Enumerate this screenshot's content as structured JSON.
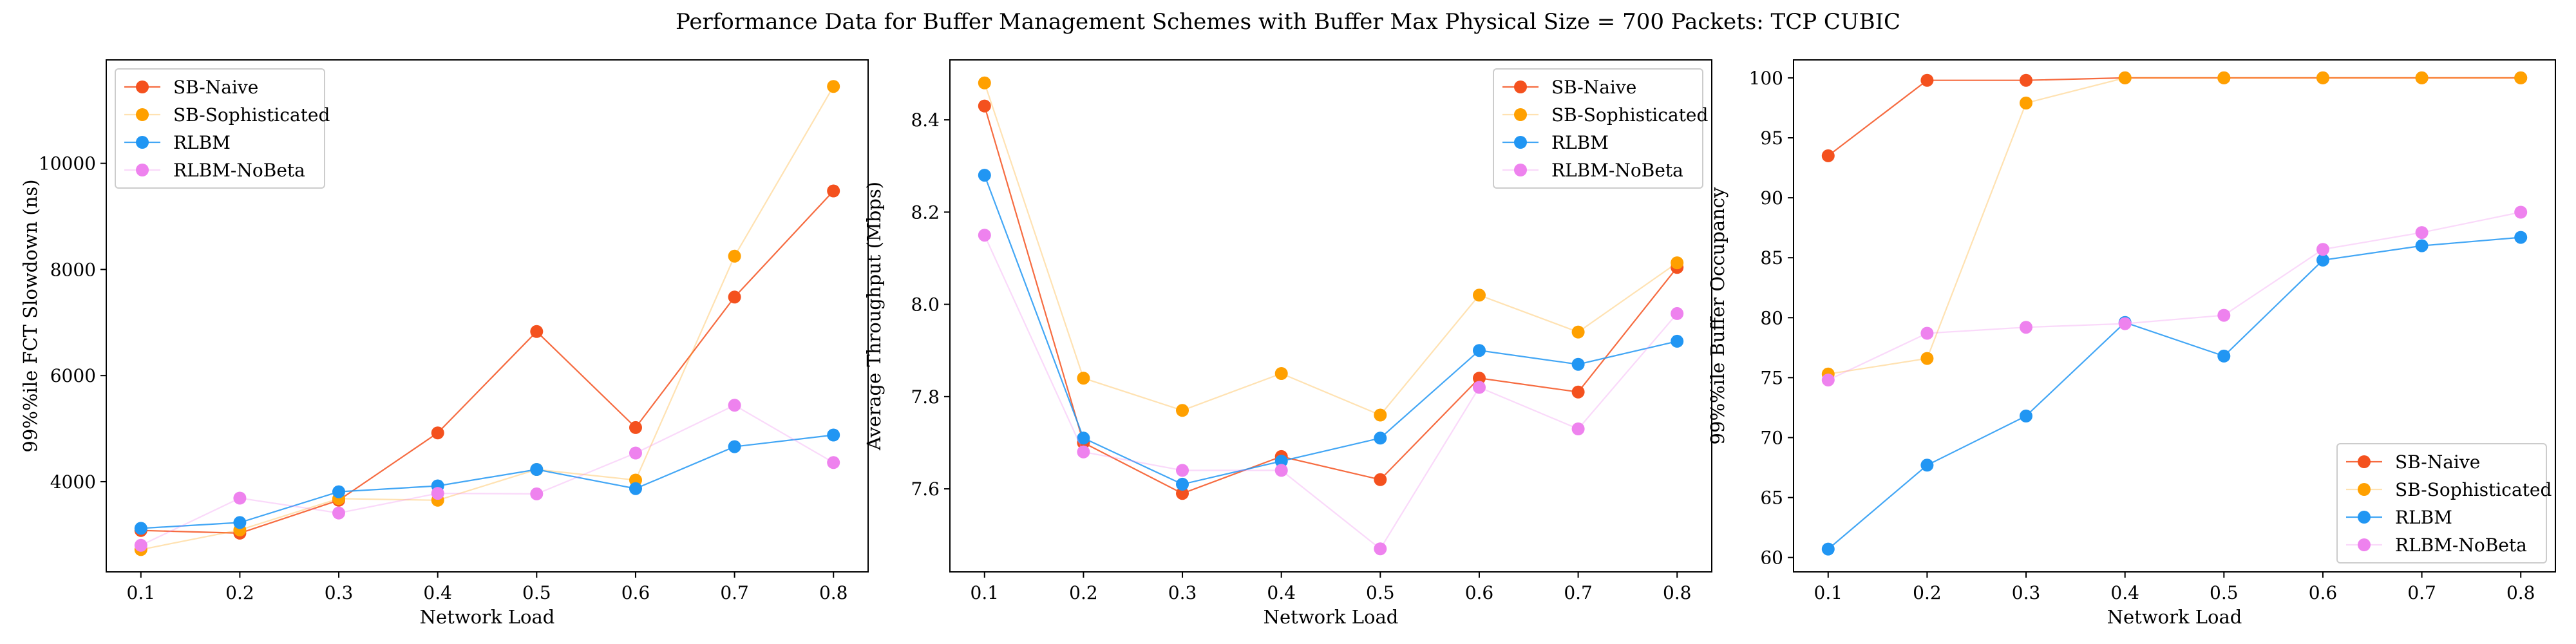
{
  "figure": {
    "title": "Performance Data for Buffer Management Schemes with Buffer Max Physical Size = 700 Packets: TCP CUBIC",
    "series_styles": [
      {
        "name": "SB-Naive",
        "color": "#f4511e",
        "line_opacity": 0.85
      },
      {
        "name": "SB-Sophisticated",
        "color": "#ffa000",
        "line_opacity": 0.3
      },
      {
        "name": "RLBM",
        "color": "#2196f3",
        "line_opacity": 0.85
      },
      {
        "name": "RLBM-NoBeta",
        "color": "#ee82ee",
        "line_opacity": 0.3
      }
    ]
  },
  "chart_data": [
    {
      "type": "line",
      "xlabel": "Network Load",
      "ylabel": "99%%ile FCT Slowdown (ns)",
      "x": [
        0.1,
        0.2,
        0.3,
        0.4,
        0.5,
        0.6,
        0.7,
        0.8
      ],
      "xticks": [
        "0.1",
        "0.2",
        "0.3",
        "0.4",
        "0.5",
        "0.6",
        "0.7",
        "0.8"
      ],
      "xlim": [
        0.065,
        0.835
      ],
      "ylim": [
        2300,
        11950
      ],
      "yticks": [
        4000,
        6000,
        8000,
        10000
      ],
      "ytick_labels": [
        "4000",
        "6000",
        "8000",
        "10000"
      ],
      "legend": "top-left",
      "series": [
        {
          "name": "SB-Naive",
          "values": [
            3080,
            3030,
            3650,
            4920,
            6830,
            5020,
            7480,
            9480
          ]
        },
        {
          "name": "SB-Sophisticated",
          "values": [
            2720,
            3090,
            3680,
            3650,
            4230,
            4030,
            8250,
            11450
          ]
        },
        {
          "name": "RLBM",
          "values": [
            3120,
            3230,
            3810,
            3920,
            4230,
            3870,
            4660,
            4880
          ]
        },
        {
          "name": "RLBM-NoBeta",
          "values": [
            2800,
            3690,
            3410,
            3780,
            3770,
            4540,
            5440,
            4360
          ]
        }
      ]
    },
    {
      "type": "line",
      "xlabel": "Network Load",
      "ylabel": "Average Throughput (Mbps)",
      "x": [
        0.1,
        0.2,
        0.3,
        0.4,
        0.5,
        0.6,
        0.7,
        0.8
      ],
      "xticks": [
        "0.1",
        "0.2",
        "0.3",
        "0.4",
        "0.5",
        "0.6",
        "0.7",
        "0.8"
      ],
      "xlim": [
        0.065,
        0.835
      ],
      "ylim": [
        7.42,
        8.53
      ],
      "yticks": [
        7.6,
        7.8,
        8.0,
        8.2,
        8.4
      ],
      "ytick_labels": [
        "7.6",
        "7.8",
        "8.0",
        "8.2",
        "8.4"
      ],
      "legend": "top-right",
      "series": [
        {
          "name": "SB-Naive",
          "values": [
            8.43,
            7.7,
            7.59,
            7.67,
            7.62,
            7.84,
            7.81,
            8.08
          ]
        },
        {
          "name": "SB-Sophisticated",
          "values": [
            8.48,
            7.84,
            7.77,
            7.85,
            7.76,
            8.02,
            7.94,
            8.09
          ]
        },
        {
          "name": "RLBM",
          "values": [
            8.28,
            7.71,
            7.61,
            7.66,
            7.71,
            7.9,
            7.87,
            7.92
          ]
        },
        {
          "name": "RLBM-NoBeta",
          "values": [
            8.15,
            7.68,
            7.64,
            7.64,
            7.47,
            7.82,
            7.73,
            7.98
          ]
        }
      ]
    },
    {
      "type": "line",
      "xlabel": "Network Load",
      "ylabel": "99%%ile Buffer Occupancy",
      "x": [
        0.1,
        0.2,
        0.3,
        0.4,
        0.5,
        0.6,
        0.7,
        0.8
      ],
      "xticks": [
        "0.1",
        "0.2",
        "0.3",
        "0.4",
        "0.5",
        "0.6",
        "0.7",
        "0.8"
      ],
      "xlim": [
        0.065,
        0.835
      ],
      "ylim": [
        58.8,
        101.5
      ],
      "yticks": [
        60,
        65,
        70,
        75,
        80,
        85,
        90,
        95,
        100
      ],
      "ytick_labels": [
        "60",
        "65",
        "70",
        "75",
        "80",
        "85",
        "90",
        "95",
        "100"
      ],
      "legend": "bottom-right",
      "series": [
        {
          "name": "SB-Naive",
          "values": [
            93.5,
            99.8,
            99.8,
            100,
            100,
            100,
            100,
            100
          ]
        },
        {
          "name": "SB-Sophisticated",
          "values": [
            75.3,
            76.6,
            97.9,
            100,
            100,
            100,
            100,
            100
          ]
        },
        {
          "name": "RLBM",
          "values": [
            60.7,
            67.7,
            71.8,
            79.6,
            76.8,
            84.8,
            86.0,
            86.7
          ]
        },
        {
          "name": "RLBM-NoBeta",
          "values": [
            74.8,
            78.7,
            79.2,
            79.5,
            80.2,
            85.7,
            87.1,
            88.8
          ]
        }
      ]
    }
  ]
}
